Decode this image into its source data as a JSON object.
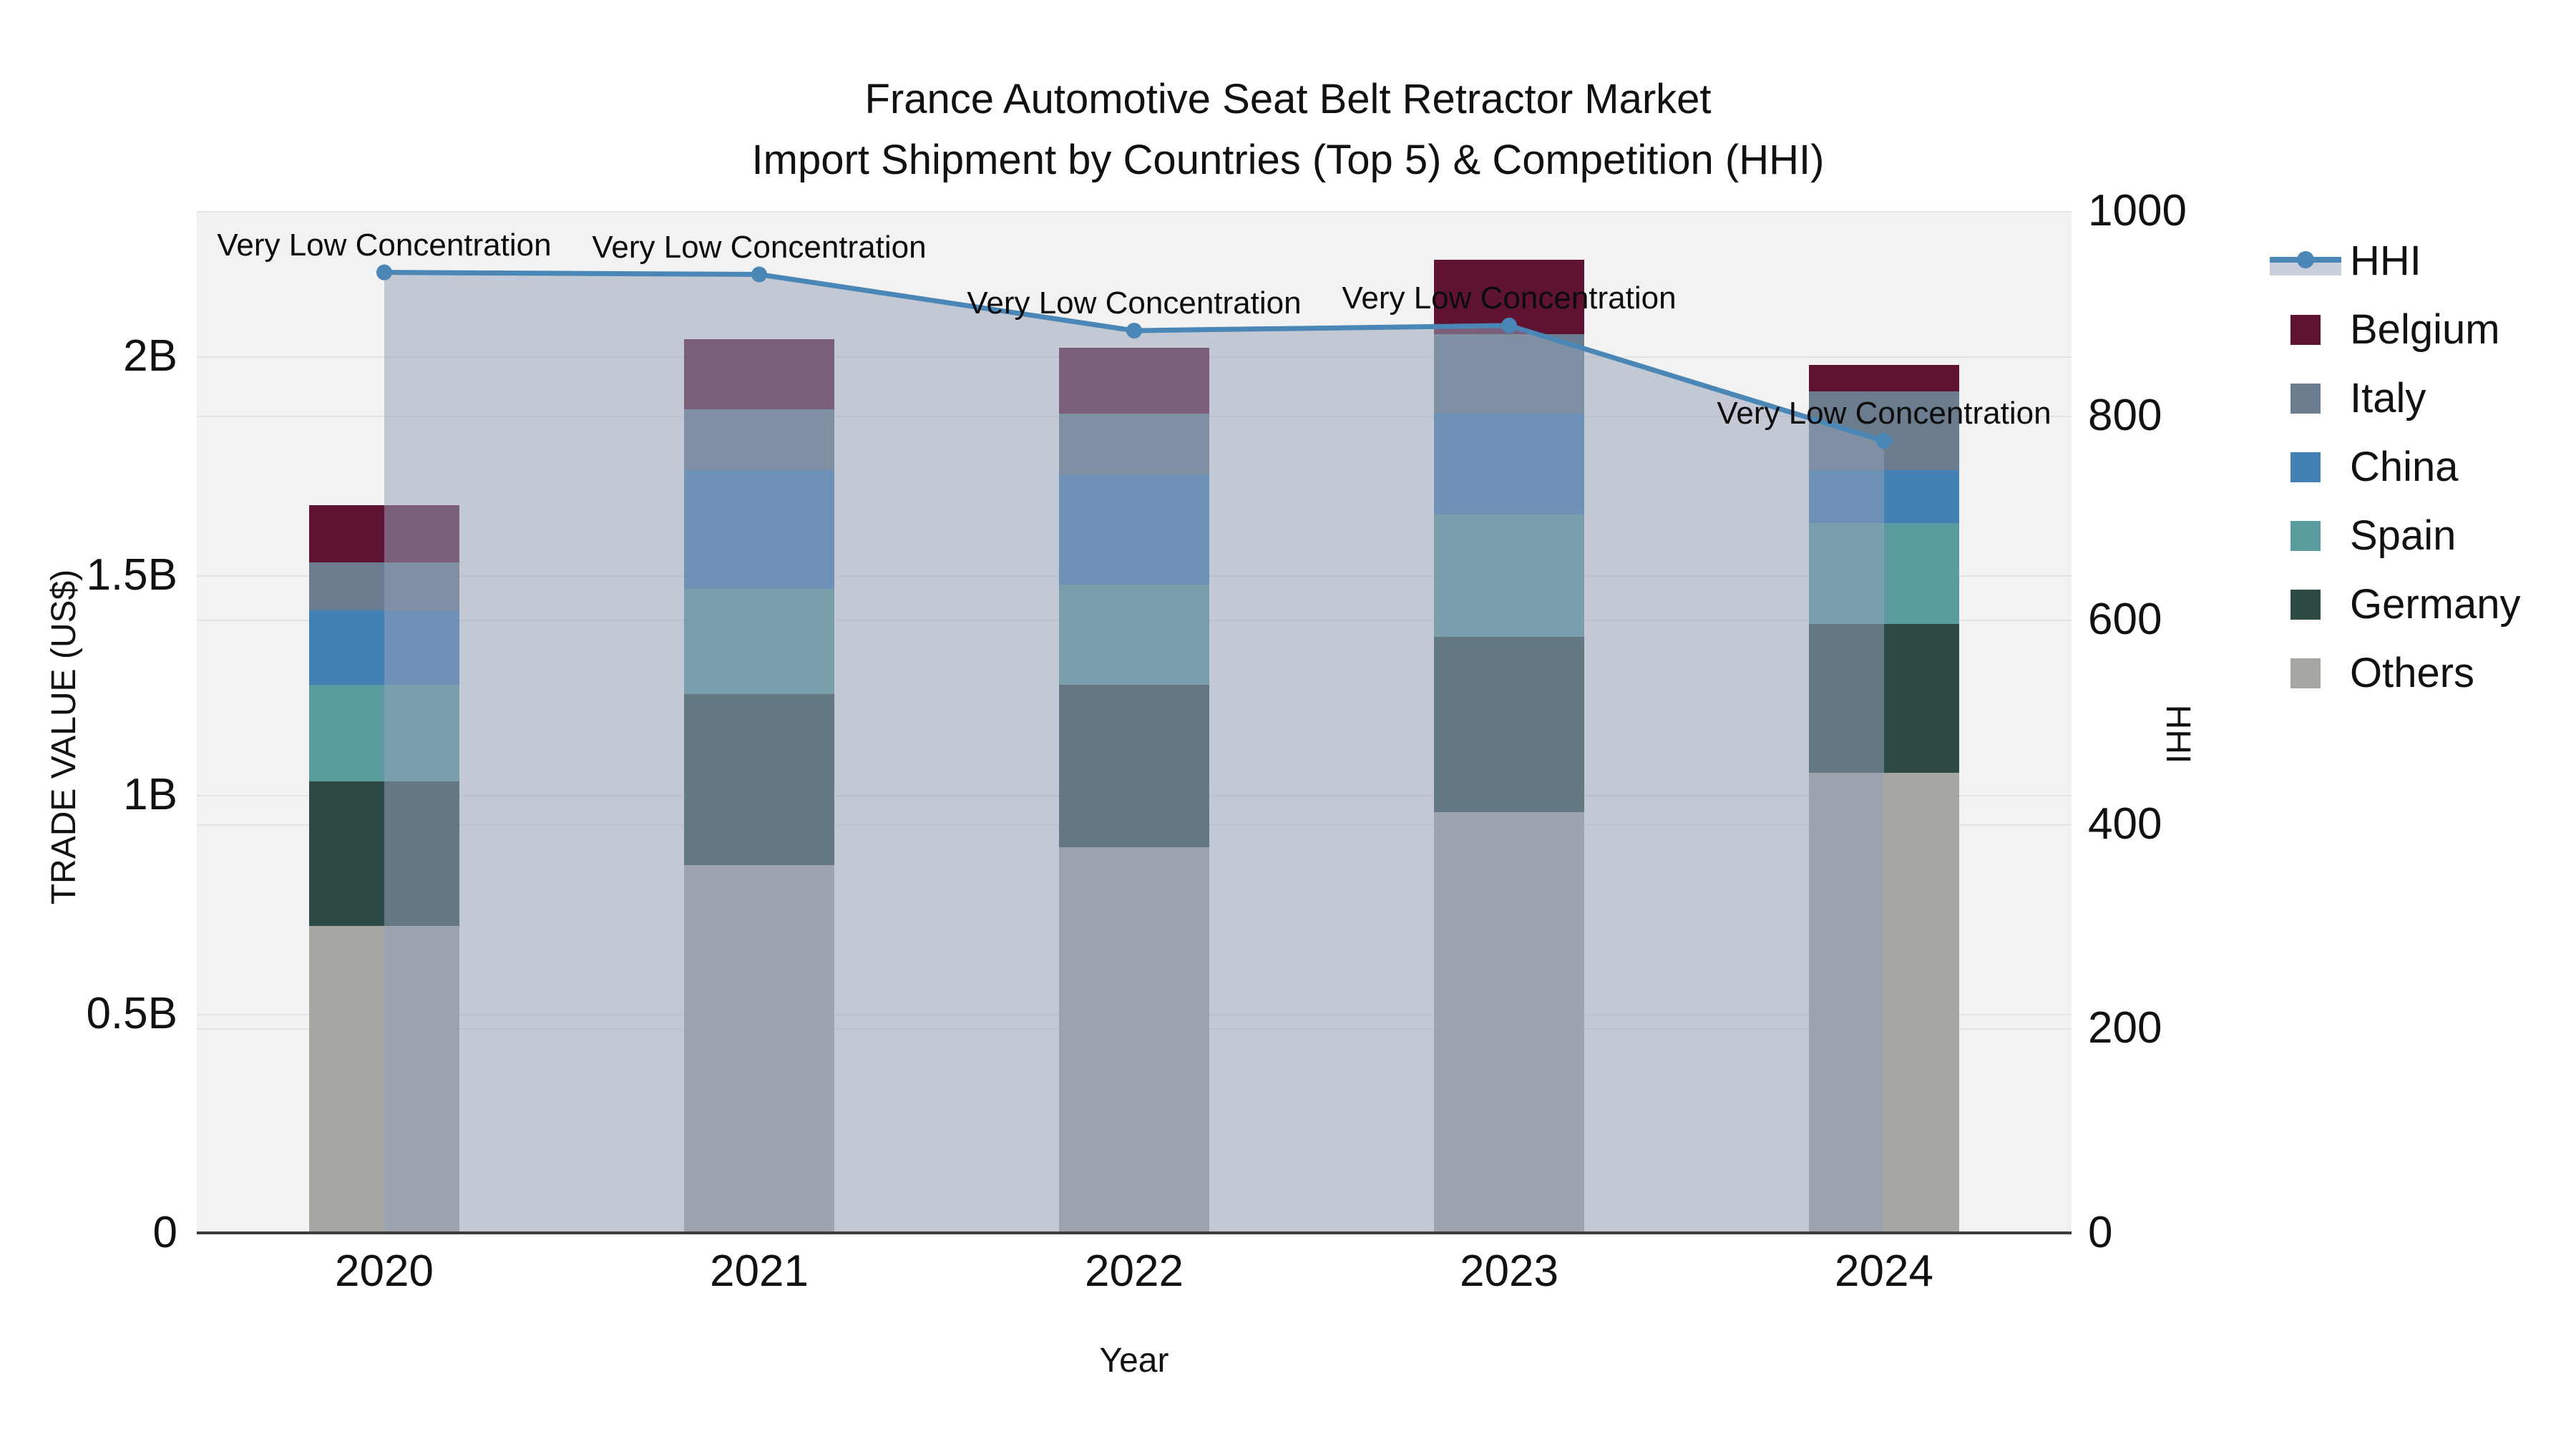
{
  "title": {
    "line1": "France Automotive Seat Belt Retractor Market",
    "line2": "Import Shipment by Countries (Top 5) & Competition (HHI)"
  },
  "axes": {
    "x": {
      "title": "Year",
      "tick_labels": [
        "2020",
        "2021",
        "2022",
        "2023",
        "2024"
      ]
    },
    "y_left": {
      "title": "TRADE VALUE (US$)",
      "tick_labels": [
        "0",
        "0.5B",
        "1B",
        "1.5B",
        "2B"
      ],
      "tick_values": [
        0,
        0.5,
        1.0,
        1.5,
        2.0
      ],
      "range": [
        0,
        2.33
      ]
    },
    "y_right": {
      "title": "HHI",
      "tick_labels": [
        "0",
        "200",
        "400",
        "600",
        "800",
        "1000"
      ],
      "tick_values": [
        0,
        200,
        400,
        600,
        800,
        1000
      ],
      "range": [
        0,
        1000
      ]
    }
  },
  "legend": {
    "items": [
      {
        "label": "HHI",
        "kind": "line-fill",
        "color_key": "hhi_line"
      },
      {
        "label": "Belgium",
        "kind": "box",
        "color_key": "belgium"
      },
      {
        "label": "Italy",
        "kind": "box",
        "color_key": "italy"
      },
      {
        "label": "China",
        "kind": "box",
        "color_key": "china"
      },
      {
        "label": "Spain",
        "kind": "box",
        "color_key": "spain"
      },
      {
        "label": "Germany",
        "kind": "box",
        "color_key": "germany"
      },
      {
        "label": "Others",
        "kind": "box",
        "color_key": "others"
      }
    ]
  },
  "colors": {
    "belgium": "#5F1333",
    "italy": "#6A7C8D",
    "china": "#4380B5",
    "spain": "#5A9C9E",
    "germany": "#2D4A47",
    "others": "#A8A6A3",
    "hhi_line": "#4A86B6",
    "hhi_fill": "rgba(150,163,186,0.52)",
    "plot_bg": "#F2F2F2",
    "grid": "#E4E4E4",
    "axis_line": "#3C3C3C"
  },
  "chart_data": [
    {
      "type": "bar",
      "stacked": true,
      "title": "France Automotive Seat Belt Retractor Market — Import Shipment by Countries (Top 5) & Competition (HHI)",
      "xlabel": "Year",
      "ylabel": "TRADE VALUE (US$)",
      "units": "billions US$",
      "ylim": [
        0,
        2.33
      ],
      "grid": true,
      "legend_position": "right",
      "categories": [
        "2020",
        "2021",
        "2022",
        "2023",
        "2024"
      ],
      "series": [
        {
          "name": "Belgium",
          "values": [
            0.13,
            0.16,
            0.15,
            0.17,
            0.06
          ]
        },
        {
          "name": "Italy",
          "values": [
            0.11,
            0.14,
            0.14,
            0.18,
            0.18
          ]
        },
        {
          "name": "China",
          "values": [
            0.17,
            0.27,
            0.25,
            0.23,
            0.12
          ]
        },
        {
          "name": "Spain",
          "values": [
            0.22,
            0.24,
            0.23,
            0.28,
            0.23
          ]
        },
        {
          "name": "Germany",
          "values": [
            0.33,
            0.39,
            0.37,
            0.4,
            0.34
          ]
        },
        {
          "name": "Others",
          "values": [
            0.7,
            0.84,
            0.88,
            0.96,
            1.05
          ]
        }
      ]
    },
    {
      "type": "line",
      "name": "HHI",
      "ylabel": "HHI",
      "ylim": [
        0,
        1000
      ],
      "area_fill": true,
      "x": [
        "2020",
        "2021",
        "2022",
        "2023",
        "2024"
      ],
      "values": [
        940,
        938,
        883,
        888,
        775
      ],
      "annotations": [
        "Very Low Concentration",
        "Very Low Concentration",
        "Very Low Concentration",
        "Very Low Concentration",
        "Very Low Concentration"
      ]
    }
  ]
}
